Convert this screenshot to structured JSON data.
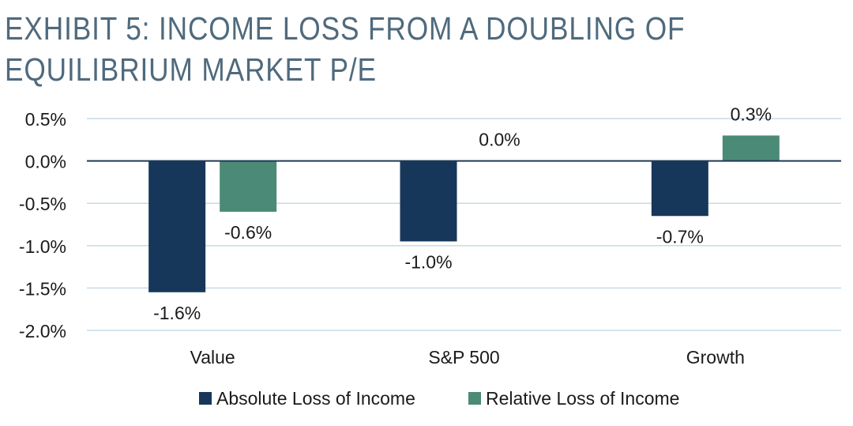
{
  "title_lines": [
    "EXHIBIT 5: INCOME LOSS FROM A DOUBLING OF",
    "EQUILIBRIUM MARKET P/E"
  ],
  "colors": {
    "title": "#4f6a7d",
    "absolute": "#17375a",
    "relative": "#4a8a76",
    "grid": "#c5dce8",
    "zero_line": "#1f3a57"
  },
  "chart_data": {
    "type": "bar",
    "title": "EXHIBIT 5: INCOME LOSS FROM A DOUBLING OF EQUILIBRIUM MARKET P/E",
    "categories": [
      "Value",
      "S&P 500",
      "Growth"
    ],
    "series": [
      {
        "name": "Absolute Loss of Income",
        "values": [
          -1.55,
          -0.95,
          -0.65
        ],
        "labels": [
          "-1.6%",
          "-1.0%",
          "-0.7%"
        ],
        "color": "#17375a"
      },
      {
        "name": "Relative Loss of Income",
        "values": [
          -0.6,
          0.0,
          0.3
        ],
        "labels": [
          "-0.6%",
          "0.0%",
          "0.3%"
        ],
        "color": "#4a8a76"
      }
    ],
    "yticks": [
      0.5,
      0.0,
      -0.5,
      -1.0,
      -1.5,
      -2.0
    ],
    "ytick_labels": [
      "0.5%",
      "0.0%",
      "-0.5%",
      "-1.0%",
      "-1.5%",
      "-2.0%"
    ],
    "ylim": [
      -2.0,
      0.5
    ],
    "xlabel": "",
    "ylabel": "",
    "grid": true,
    "legend_position": "bottom-center"
  }
}
